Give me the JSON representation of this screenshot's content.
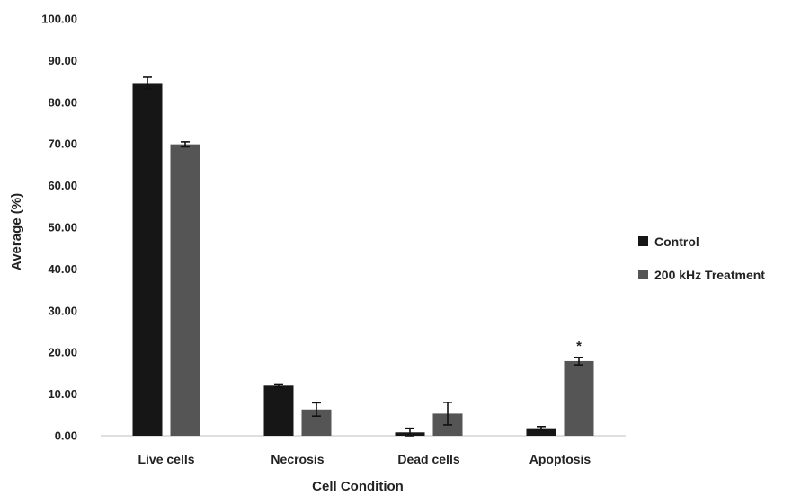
{
  "chart_data": {
    "type": "bar",
    "categories": [
      "Live cells",
      "Necrosis",
      "Dead cells",
      "Apoptosis"
    ],
    "series": [
      {
        "name": "Control",
        "color": "#161616",
        "values": [
          84.6,
          12.0,
          0.8,
          1.8
        ],
        "errors": [
          1.4,
          0.4,
          1.0,
          0.4
        ]
      },
      {
        "name": "200 kHz Treatment",
        "color": "#555555",
        "values": [
          69.9,
          6.3,
          5.3,
          17.9
        ],
        "errors": [
          0.6,
          1.6,
          2.7,
          0.9
        ]
      }
    ],
    "annotations": [
      {
        "category": "Apoptosis",
        "series": "200 kHz Treatment",
        "text": "*"
      }
    ],
    "xlabel": "Cell Condition",
    "ylabel": "Average (%)",
    "ylim": [
      0,
      100
    ],
    "yticks": [
      "0.00",
      "10.00",
      "20.00",
      "30.00",
      "40.00",
      "50.00",
      "60.00",
      "70.00",
      "80.00",
      "90.00",
      "100.00"
    ],
    "grid": false,
    "legend_position": "right"
  }
}
